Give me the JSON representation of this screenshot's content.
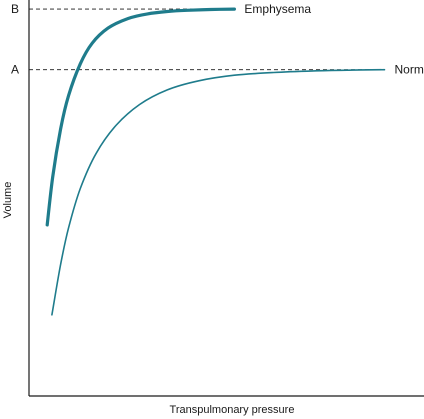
{
  "chart_data": {
    "type": "line",
    "xlabel": "Transpulmonary pressure",
    "ylabel": "Volume",
    "xlim": [
      0,
      1
    ],
    "ylim": [
      0,
      1
    ],
    "grid": false,
    "reference_lines": [
      {
        "label": "B",
        "y": 0.977,
        "style": "dashed"
      },
      {
        "label": "A",
        "y": 0.824,
        "style": "dashed"
      }
    ],
    "series": [
      {
        "name": "Emphysema",
        "color": "#1f7c8c",
        "x": [
          0.046,
          0.06,
          0.08,
          0.1,
          0.13,
          0.16,
          0.2,
          0.25,
          0.3,
          0.35,
          0.4,
          0.46,
          0.52
        ],
        "y": [
          0.432,
          0.553,
          0.674,
          0.758,
          0.839,
          0.891,
          0.929,
          0.953,
          0.965,
          0.971,
          0.974,
          0.976,
          0.977
        ]
      },
      {
        "name": "Normal",
        "color": "#1f7c8c",
        "x": [
          0.058,
          0.08,
          0.1,
          0.13,
          0.17,
          0.22,
          0.28,
          0.35,
          0.43,
          0.52,
          0.62,
          0.72,
          0.82,
          0.9
        ],
        "y": [
          0.205,
          0.332,
          0.424,
          0.524,
          0.613,
          0.683,
          0.736,
          0.773,
          0.796,
          0.81,
          0.817,
          0.821,
          0.823,
          0.824
        ]
      }
    ]
  }
}
